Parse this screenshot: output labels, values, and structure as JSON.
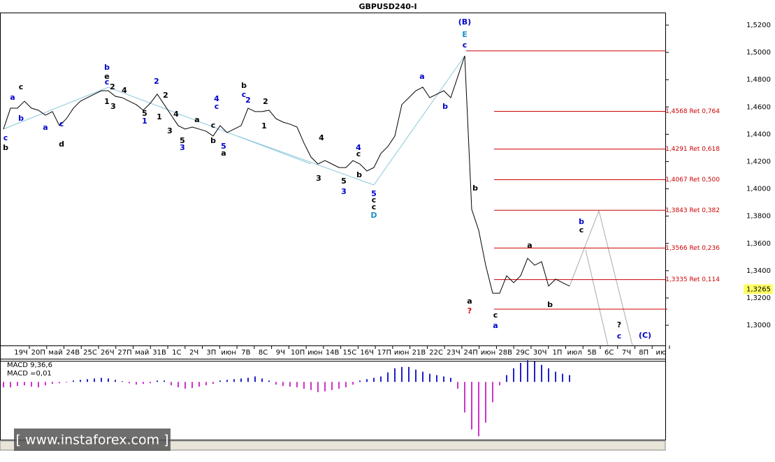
{
  "chart_data": [
    {
      "type": "line",
      "title": "GBPUSD240-I",
      "xlabels": [
        "19Ч",
        "20П",
        "май",
        "24В",
        "25С",
        "26Ч",
        "27П",
        "май",
        "31В",
        "1С",
        "2Ч",
        "3П",
        "июн",
        "7В",
        "8С",
        "9Ч",
        "10П",
        "июн",
        "14В",
        "15С",
        "16Ч",
        "17П",
        "июн",
        "21В",
        "22С",
        "23Ч",
        "24П",
        "июн",
        "28В",
        "29С",
        "30Ч",
        "1П",
        "июл",
        "5В",
        "6С",
        "7Ч",
        "8П",
        "ию"
      ],
      "series": [
        {
          "name": "GBPUSD",
          "color": "#000000",
          "values": [
            1.4438,
            1.4591,
            1.4591,
            1.4642,
            1.4591,
            1.4576,
            1.454,
            1.4566,
            1.4463,
            1.4514,
            1.4591,
            1.4642,
            1.4668,
            1.4694,
            1.4719,
            1.4719,
            1.4678,
            1.4668,
            1.4642,
            1.4617,
            1.4576,
            1.4627,
            1.4694,
            1.4617,
            1.454,
            1.4463,
            1.4438,
            1.4453,
            1.4438,
            1.4422,
            1.4387,
            1.4463,
            1.4412,
            1.4438,
            1.4463,
            1.4591,
            1.4566,
            1.4566,
            1.4576,
            1.4514,
            1.4489,
            1.4474,
            1.4453,
            1.4335,
            1.4233,
            1.4182,
            1.4207,
            1.4182,
            1.4156,
            1.4156,
            1.4207,
            1.4182,
            1.4131,
            1.4156,
            1.4259,
            1.431,
            1.4387,
            1.4617,
            1.4668,
            1.4719,
            1.4745,
            1.4668,
            1.4694,
            1.4719,
            1.4668,
            1.4821,
            1.4975,
            1.3849,
            1.3696,
            1.344,
            1.3235,
            1.3235,
            1.3363,
            1.3312,
            1.3363,
            1.3491,
            1.344,
            1.3466,
            1.3287,
            1.3338,
            1.3312,
            1.3287
          ]
        }
      ],
      "ylim": [
        1.2852,
        1.5292
      ],
      "yticks": [
        {
          "value": 1.52,
          "label": "1,5200"
        },
        {
          "value": 1.5,
          "label": "1,5000"
        },
        {
          "value": 1.48,
          "label": "1,4800"
        },
        {
          "value": 1.46,
          "label": "1,4600"
        },
        {
          "value": 1.44,
          "label": "1,4400"
        },
        {
          "value": 1.42,
          "label": "1,4200"
        },
        {
          "value": 1.4,
          "label": "1,4000"
        },
        {
          "value": 1.38,
          "label": "1,3800"
        },
        {
          "value": 1.36,
          "label": "1,3600"
        },
        {
          "value": 1.34,
          "label": "1,3400"
        },
        {
          "value": 1.32,
          "label": "1,3200"
        },
        {
          "value": 1.3,
          "label": "1,3000"
        }
      ],
      "current_price": {
        "value": 1.3265,
        "label": "1,3265"
      },
      "levels": [
        {
          "value": 1.4568,
          "label": "1,4568 Ret 0,764"
        },
        {
          "value": 1.4291,
          "label": "1,4291 Ret 0,618"
        },
        {
          "value": 1.4067,
          "label": "1,4067 Ret 0,500"
        },
        {
          "value": 1.3843,
          "label": "1,3843 Ret 0,382"
        },
        {
          "value": 1.3566,
          "label": "1,3566 Ret 0,236"
        },
        {
          "value": 1.3335,
          "label": "1,3335 Ret 0,114"
        }
      ],
      "lines": [
        1.5011,
        1.3118
      ],
      "level_color": "#cc0000",
      "annotations": [
        {
          "text": "(B)",
          "color": "#0000cc"
        },
        {
          "text": "E",
          "color": "#1e90c8"
        },
        {
          "text": "c",
          "color": "#0000cc"
        },
        {
          "text": "b",
          "color": "#000"
        },
        {
          "text": "c",
          "color": "#0000cc"
        },
        {
          "text": "c",
          "color": "#000"
        },
        {
          "text": "a",
          "color": "#0000cc"
        },
        {
          "text": "b",
          "color": "#0000cc"
        },
        {
          "text": "a",
          "color": "#0000cc"
        },
        {
          "text": "c",
          "color": "#0000cc"
        },
        {
          "text": "d",
          "color": "#000"
        },
        {
          "text": "b",
          "color": "#0000cc"
        },
        {
          "text": "e",
          "color": "#000"
        },
        {
          "text": "c",
          "color": "#0000cc"
        },
        {
          "text": "2",
          "color": "#000"
        },
        {
          "text": "1",
          "color": "#000"
        },
        {
          "text": "3",
          "color": "#000"
        },
        {
          "text": "4",
          "color": "#000"
        },
        {
          "text": "5",
          "color": "#000"
        },
        {
          "text": "1",
          "color": "#0000cc"
        },
        {
          "text": "2",
          "color": "#0000cc"
        },
        {
          "text": "2",
          "color": "#000"
        },
        {
          "text": "1",
          "color": "#000"
        },
        {
          "text": "4",
          "color": "#000"
        },
        {
          "text": "3",
          "color": "#000"
        },
        {
          "text": "5",
          "color": "#000"
        },
        {
          "text": "3",
          "color": "#0000cc"
        },
        {
          "text": "a",
          "color": "#000"
        },
        {
          "text": "c",
          "color": "#000"
        },
        {
          "text": "4",
          "color": "#0000cc"
        },
        {
          "text": "c",
          "color": "#0000cc"
        },
        {
          "text": "b",
          "color": "#000"
        },
        {
          "text": "5",
          "color": "#0000cc"
        },
        {
          "text": "a",
          "color": "#000"
        },
        {
          "text": "b",
          "color": "#000"
        },
        {
          "text": "c",
          "color": "#0000cc"
        },
        {
          "text": "2",
          "color": "#0000cc"
        },
        {
          "text": "2",
          "color": "#000"
        },
        {
          "text": "1",
          "color": "#000"
        },
        {
          "text": "4",
          "color": "#000"
        },
        {
          "text": "3",
          "color": "#000"
        },
        {
          "text": "5",
          "color": "#000"
        },
        {
          "text": "3",
          "color": "#0000cc"
        },
        {
          "text": "4",
          "color": "#0000cc"
        },
        {
          "text": "c",
          "color": "#000"
        },
        {
          "text": "b",
          "color": "#000"
        },
        {
          "text": "5",
          "color": "#0000cc"
        },
        {
          "text": "c",
          "color": "#000"
        },
        {
          "text": "c",
          "color": "#000"
        },
        {
          "text": "D",
          "color": "#1e90c8"
        },
        {
          "text": "a",
          "color": "#0000cc"
        },
        {
          "text": "b",
          "color": "#0000cc"
        },
        {
          "text": "b",
          "color": "#000"
        },
        {
          "text": "a",
          "color": "#000"
        },
        {
          "text": "?",
          "color": "#e00000"
        },
        {
          "text": "c",
          "color": "#000"
        },
        {
          "text": "a",
          "color": "#0000cc"
        },
        {
          "text": "a",
          "color": "#000"
        },
        {
          "text": "b",
          "color": "#000"
        },
        {
          "text": "b",
          "color": "#0000cc"
        },
        {
          "text": "c",
          "color": "#000"
        },
        {
          "text": "?",
          "color": "#000"
        },
        {
          "text": "c",
          "color": "#0000cc"
        },
        {
          "text": "(C)",
          "color": "#0000cc"
        }
      ]
    },
    {
      "type": "bar",
      "title": "MACD 9,36,6",
      "subtitle": "MACD =0,01",
      "values": [
        -8,
        -8,
        -6,
        -5,
        -7,
        -8,
        -5,
        -3,
        -2,
        -1,
        2,
        3,
        4,
        5,
        6,
        5,
        3,
        1,
        -2,
        -4,
        -3,
        -2,
        2,
        2,
        -5,
        -8,
        -10,
        -9,
        -7,
        -5,
        -3,
        2,
        3,
        4,
        5,
        6,
        8,
        5,
        2,
        -4,
        -6,
        -7,
        -8,
        -10,
        -12,
        -15,
        -14,
        -12,
        -10,
        -8,
        -4,
        2,
        4,
        6,
        8,
        14,
        20,
        22,
        22,
        18,
        15,
        12,
        10,
        8,
        6,
        -10,
        -45,
        -70,
        -80,
        -60,
        -30,
        -5,
        10,
        20,
        28,
        32,
        30,
        25,
        20,
        15,
        12,
        10
      ],
      "colors": {
        "positive": "#2020c8",
        "negative": "#cc33cc"
      },
      "ylim": [
        -85,
        30
      ]
    },
    {
      "watermark": "[ www.instaforex.com ]"
    }
  ]
}
